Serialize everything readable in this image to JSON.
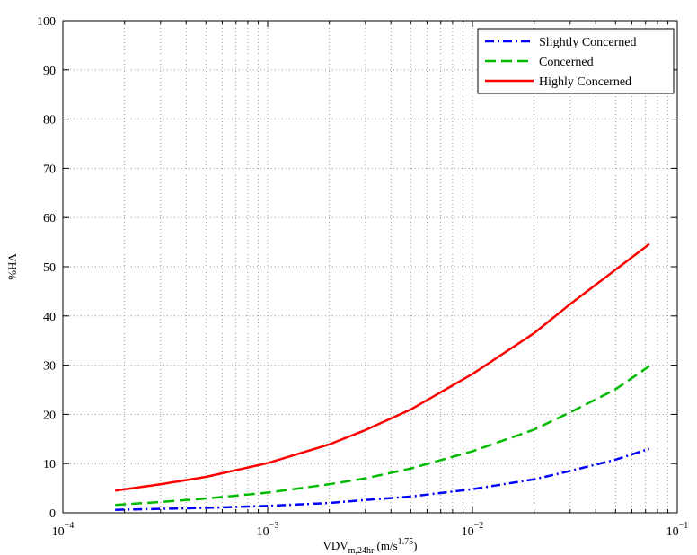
{
  "chart_data": {
    "type": "line",
    "xscale": "log",
    "xlim": [
      0.0001,
      0.1
    ],
    "ylim": [
      0,
      100
    ],
    "grid": true,
    "legend_position": "top-right",
    "xlabel": {
      "main": "VDV",
      "sub": "m,24hr",
      "unit_main": " (m/s",
      "unit_sup": "1.75",
      "unit_end": ")"
    },
    "ylabel": "%HA",
    "x_ticks": [
      {
        "value": 0.0001,
        "base": "10",
        "exp": "−4"
      },
      {
        "value": 0.001,
        "base": "10",
        "exp": "−3"
      },
      {
        "value": 0.01,
        "base": "10",
        "exp": "−2"
      },
      {
        "value": 0.1,
        "base": "10",
        "exp": "−1"
      }
    ],
    "y_ticks": [
      0,
      10,
      20,
      30,
      40,
      50,
      60,
      70,
      80,
      90,
      100
    ],
    "x": [
      0.00018,
      0.0003,
      0.0005,
      0.001,
      0.002,
      0.003,
      0.005,
      0.01,
      0.02,
      0.03,
      0.05,
      0.073
    ],
    "series": [
      {
        "name": "Slightly Concerned",
        "color": "#0000ff",
        "dash": "dashdot",
        "values": [
          0.6,
          0.8,
          1.0,
          1.4,
          2.0,
          2.6,
          3.3,
          4.8,
          6.8,
          8.5,
          10.8,
          13.0
        ]
      },
      {
        "name": "Concerned",
        "color": "#00bb00",
        "dash": "dashed",
        "values": [
          1.6,
          2.2,
          2.9,
          4.1,
          5.8,
          7.0,
          9.0,
          12.5,
          16.9,
          20.4,
          25.1,
          29.8
        ]
      },
      {
        "name": "Highly Concerned",
        "color": "#ff0000",
        "dash": "solid",
        "values": [
          4.5,
          5.8,
          7.3,
          10.1,
          13.9,
          16.8,
          21.0,
          28.2,
          36.5,
          42.4,
          49.4,
          54.6
        ]
      }
    ]
  }
}
